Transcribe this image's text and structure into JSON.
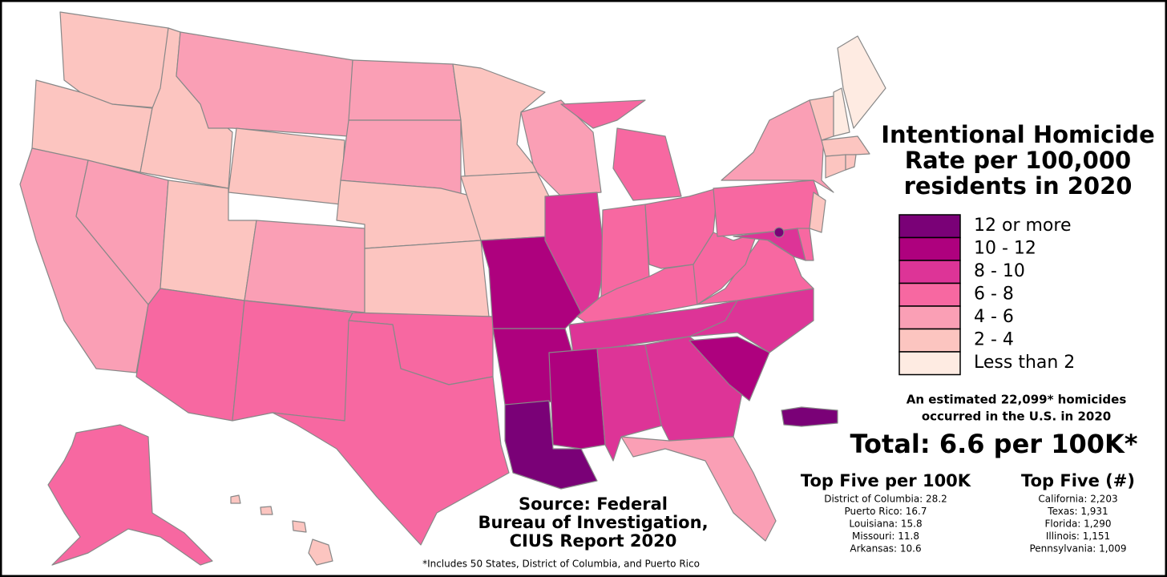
{
  "title": [
    "Intentional Homicide",
    "Rate per 100,000",
    "residents in 2020"
  ],
  "legend": [
    {
      "label": "12 or more",
      "color": "#7a0177"
    },
    {
      "label": "10 - 12",
      "color": "#ae017e"
    },
    {
      "label": "8 - 10",
      "color": "#dd3497"
    },
    {
      "label": "6 - 8",
      "color": "#f768a1"
    },
    {
      "label": "4 - 6",
      "color": "#fa9fb5"
    },
    {
      "label": "2 - 4",
      "color": "#fcc5c0"
    },
    {
      "label": "Less than 2",
      "color": "#feebe2"
    }
  ],
  "estimate": [
    "An estimated 22,099* homicides",
    "occurred in the U.S. in 2020"
  ],
  "total": "Total: 6.6 per 100K*",
  "top_rate": {
    "heading": "Top Five per 100K",
    "items": [
      "District of Columbia: 28.2",
      "Puerto Rico: 16.7",
      "Louisiana: 15.8",
      "Missouri: 11.8",
      "Arkansas: 10.6"
    ]
  },
  "top_count": {
    "heading": "Top Five (#)",
    "items": [
      "California: 2,203",
      "Texas: 1,931",
      "Florida: 1,290",
      "Illinois: 1,151",
      "Pennsylvania: 1,009"
    ]
  },
  "source": [
    "Source: Federal",
    "Bureau of Investigation,",
    "CIUS Report 2020"
  ],
  "footnote": "*Includes 50 States, District of Columbia, and Puerto Rico"
}
